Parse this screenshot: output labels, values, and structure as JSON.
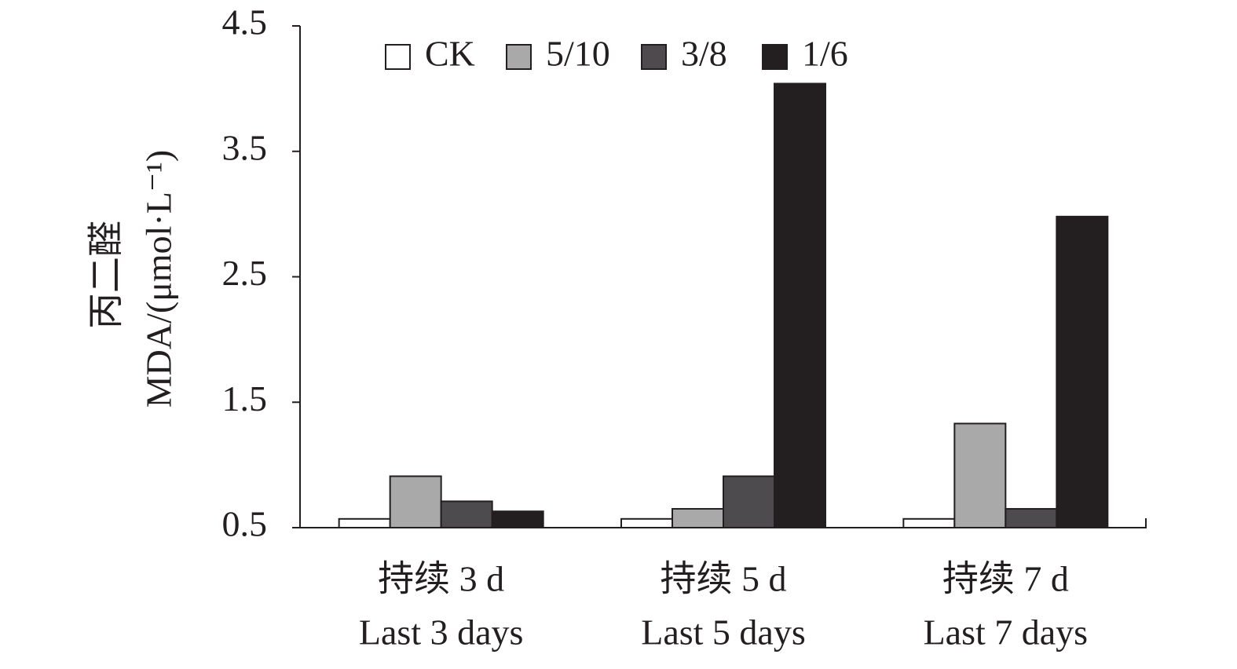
{
  "chart_data": {
    "type": "bar",
    "ylabel": "丙二醛",
    "ylabel_en": "MDA/(μmol·L⁻¹)",
    "categories": [
      "持续 3 d",
      "持续 5 d",
      "持续 7 d"
    ],
    "categories_en": [
      "Last 3 days",
      "Last 5 days",
      "Last 7 days"
    ],
    "series": [
      {
        "name": "CK",
        "color": "#ffffff",
        "values": [
          0.57,
          0.57,
          0.57
        ]
      },
      {
        "name": "5/10",
        "color": "#a9a9a9",
        "values": [
          0.91,
          0.65,
          1.33
        ]
      },
      {
        "name": "3/8",
        "color": "#4d4b4d",
        "values": [
          0.71,
          0.91,
          0.65
        ]
      },
      {
        "name": "1/6",
        "color": "#231f20",
        "values": [
          0.63,
          4.04,
          2.98
        ]
      }
    ],
    "ylim": [
      0.5,
      4.5
    ],
    "yticks": [
      0.5,
      1.5,
      2.5,
      3.5,
      4.5
    ],
    "grid": false,
    "legend": "top"
  }
}
